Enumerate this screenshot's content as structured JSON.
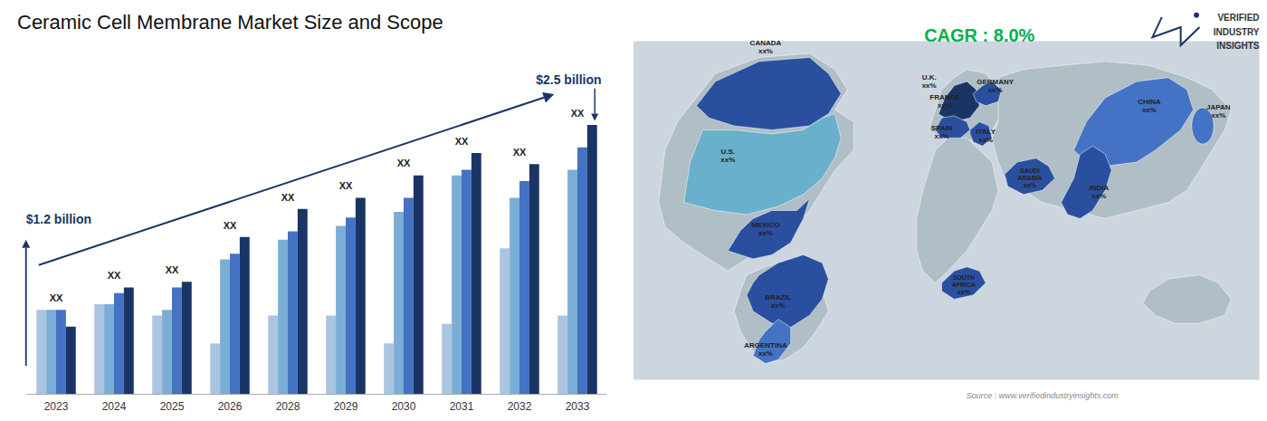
{
  "chart_data": [
    {
      "type": "bar",
      "title": "Ceramic Cell Membrane Market Size and Scope",
      "categories": [
        "2023",
        "2024",
        "2025",
        "2026",
        "2028",
        "2029",
        "2030",
        "2031",
        "2032",
        "2033"
      ],
      "series": [
        {
          "color": "#aac4e2",
          "values": [
            0.3,
            0.32,
            0.28,
            0.18,
            0.28,
            0.28,
            0.18,
            0.25,
            0.52,
            0.28
          ]
        },
        {
          "color": "#7aaed6",
          "values": [
            0.3,
            0.32,
            0.3,
            0.48,
            0.55,
            0.6,
            0.65,
            0.78,
            0.7,
            0.8
          ]
        },
        {
          "color": "#4472c4",
          "values": [
            0.3,
            0.36,
            0.38,
            0.5,
            0.58,
            0.63,
            0.7,
            0.8,
            0.76,
            0.88
          ]
        },
        {
          "color": "#1a3565",
          "values": [
            0.24,
            0.38,
            0.4,
            0.56,
            0.66,
            0.7,
            0.78,
            0.86,
            0.82,
            0.96
          ]
        }
      ],
      "ylim": [
        0,
        1.18
      ],
      "grid": false,
      "tick_labels": "x",
      "color": "#1a3565",
      "annotations": [
        {
          "text": "XX",
          "category": "2023"
        },
        {
          "text": "XX",
          "category": "2024"
        },
        {
          "text": "XX",
          "category": "2025"
        },
        {
          "text": "XX",
          "category": "2026"
        },
        {
          "text": "XX",
          "category": "2028"
        },
        {
          "text": "XX",
          "category": "2029"
        },
        {
          "text": "XX",
          "category": "2030"
        },
        {
          "text": "XX",
          "category": "2031"
        },
        {
          "text": "XX",
          "category": "2032"
        },
        {
          "text": "XX",
          "category": "2033"
        },
        {
          "text": "$1.2 billion",
          "category": "2023"
        },
        {
          "text": "$2.5 billion",
          "category": "2033"
        }
      ]
    },
    {
      "type": "map",
      "title": "CAGR : 8.0%",
      "categories": [
        "CANADA\nxx%",
        "U.S.\nxx%",
        "MEXICO\nxx%",
        "BRAZIL\nxx%",
        "ARGENTINA\nxx%",
        "U.K.\nxx%",
        "FRANCE\nxx%",
        "SPAIN\nxx%",
        "GERMANY\nxx%",
        "ITALY\nxx%",
        "SAUDI\nARABIA\nxx%",
        "SOUTH\nAFRICA\nxx%",
        "CHINA\nxx%",
        "INDIA\nxx%",
        "JAPAN\nxx%"
      ],
      "colors": [
        "#2a4f9e",
        "#6ab0cc",
        "#2a4f9e",
        "#2a4f9e",
        "#4472c4",
        "#1a3565",
        "#1a3565",
        "#2a4f9e",
        "#2a4f9e",
        "#2a4f9e",
        "#2a4f9e",
        "#2a4f9e",
        "#4472c4",
        "#2a4f9e",
        "#4472c4"
      ],
      "color": "#b0bec5",
      "annotations": [
        "Source : www.verifiedindustryinsights.com",
        "VERIFIED",
        "INDUSTRY",
        "INSIGHTS"
      ]
    }
  ]
}
